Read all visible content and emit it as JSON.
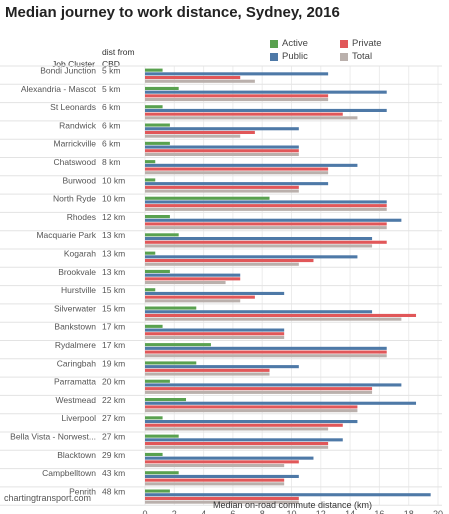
{
  "title": "Median journey to work distance, Sydney, 2016",
  "source": "chartingtransport.com",
  "colors": {
    "Active": "#59a14f",
    "Public": "#4e79a7",
    "Private": "#e15759",
    "Total": "#bab0ac"
  },
  "chart_data": {
    "type": "bar",
    "orientation": "horizontal",
    "title": "Median journey to work distance, Sydney, 2016",
    "row_header": "Job Cluster",
    "dist_header": "dist from CBD",
    "xlabel": "Median on-road commute distance (km)",
    "xlim": [
      0,
      20
    ],
    "xticks": [
      0,
      2,
      4,
      6,
      8,
      10,
      12,
      14,
      16,
      18,
      20
    ],
    "grid": true,
    "legend_position": "top-right",
    "series_order": [
      "Active",
      "Public",
      "Private",
      "Total"
    ],
    "legend": [
      {
        "name": "Active",
        "color": "#59a14f"
      },
      {
        "name": "Private",
        "color": "#e15759"
      },
      {
        "name": "Public",
        "color": "#4e79a7"
      },
      {
        "name": "Total",
        "color": "#bab0ac"
      }
    ],
    "rows": [
      {
        "cluster": "Bondi Junction",
        "dist": "5 km",
        "Active": 1.2,
        "Public": 12.5,
        "Private": 6.5,
        "Total": 7.5
      },
      {
        "cluster": "Alexandria - Mascot",
        "dist": "5 km",
        "Active": 2.3,
        "Public": 16.5,
        "Private": 12.5,
        "Total": 12.5
      },
      {
        "cluster": "St Leonards",
        "dist": "6 km",
        "Active": 1.2,
        "Public": 16.5,
        "Private": 13.5,
        "Total": 14.5
      },
      {
        "cluster": "Randwick",
        "dist": "6 km",
        "Active": 1.7,
        "Public": 10.5,
        "Private": 7.5,
        "Total": 6.5
      },
      {
        "cluster": "Marrickville",
        "dist": "6 km",
        "Active": 1.7,
        "Public": 10.5,
        "Private": 10.5,
        "Total": 10.5
      },
      {
        "cluster": "Chatswood",
        "dist": "8 km",
        "Active": 0.7,
        "Public": 14.5,
        "Private": 12.5,
        "Total": 12.5
      },
      {
        "cluster": "Burwood",
        "dist": "10 km",
        "Active": 0.7,
        "Public": 12.5,
        "Private": 10.5,
        "Total": 10.5
      },
      {
        "cluster": "North Ryde",
        "dist": "10 km",
        "Active": 8.5,
        "Public": 16.5,
        "Private": 16.5,
        "Total": 16.5
      },
      {
        "cluster": "Rhodes",
        "dist": "12 km",
        "Active": 1.7,
        "Public": 17.5,
        "Private": 16.5,
        "Total": 16.5
      },
      {
        "cluster": "Macquarie Park",
        "dist": "13 km",
        "Active": 2.3,
        "Public": 15.5,
        "Private": 16.5,
        "Total": 15.5
      },
      {
        "cluster": "Kogarah",
        "dist": "13 km",
        "Active": 0.7,
        "Public": 14.5,
        "Private": 11.5,
        "Total": 10.5
      },
      {
        "cluster": "Brookvale",
        "dist": "13 km",
        "Active": 1.7,
        "Public": 6.5,
        "Private": 6.5,
        "Total": 5.5
      },
      {
        "cluster": "Hurstville",
        "dist": "15 km",
        "Active": 0.7,
        "Public": 9.5,
        "Private": 7.5,
        "Total": 6.5
      },
      {
        "cluster": "Silverwater",
        "dist": "15 km",
        "Active": 3.5,
        "Public": 15.5,
        "Private": 18.5,
        "Total": 17.5
      },
      {
        "cluster": "Bankstown",
        "dist": "17 km",
        "Active": 1.2,
        "Public": 9.5,
        "Private": 9.5,
        "Total": 9.5
      },
      {
        "cluster": "Rydalmere",
        "dist": "17 km",
        "Active": 4.5,
        "Public": 16.5,
        "Private": 16.5,
        "Total": 16.5
      },
      {
        "cluster": "Caringbah",
        "dist": "19 km",
        "Active": 3.5,
        "Public": 10.5,
        "Private": 8.5,
        "Total": 8.5
      },
      {
        "cluster": "Parramatta",
        "dist": "20 km",
        "Active": 1.7,
        "Public": 17.5,
        "Private": 15.5,
        "Total": 15.5
      },
      {
        "cluster": "Westmead",
        "dist": "22 km",
        "Active": 2.8,
        "Public": 18.5,
        "Private": 14.5,
        "Total": 14.5
      },
      {
        "cluster": "Liverpool",
        "dist": "27 km",
        "Active": 1.2,
        "Public": 14.5,
        "Private": 13.5,
        "Total": 12.5
      },
      {
        "cluster": "Bella Vista - Norwest...",
        "dist": "27 km",
        "Active": 2.3,
        "Public": 13.5,
        "Private": 12.5,
        "Total": 12.5
      },
      {
        "cluster": "Blacktown",
        "dist": "29 km",
        "Active": 1.2,
        "Public": 11.5,
        "Private": 10.5,
        "Total": 9.5
      },
      {
        "cluster": "Campbelltown",
        "dist": "43 km",
        "Active": 2.3,
        "Public": 10.5,
        "Private": 9.5,
        "Total": 9.5
      },
      {
        "cluster": "Penrith",
        "dist": "48 km",
        "Active": 1.7,
        "Public": 19.5,
        "Private": 10.5,
        "Total": 10.5
      }
    ]
  }
}
